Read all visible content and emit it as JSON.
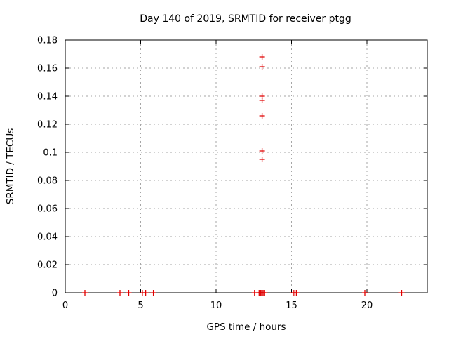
{
  "chart_data": {
    "type": "scatter",
    "title": "Day 140 of 2019, SRMTID for receiver ptgg",
    "xlabel": "GPS time / hours",
    "ylabel": "SRMTID / TECUs",
    "xlim": [
      0,
      24
    ],
    "ylim": [
      0,
      0.18
    ],
    "xticks": [
      0,
      5,
      10,
      15,
      20
    ],
    "yticks": [
      0,
      0.02,
      0.04,
      0.06,
      0.08,
      0.1,
      0.12,
      0.14,
      0.16,
      0.18
    ],
    "grid": true,
    "legend": "none",
    "marker": "plus",
    "marker_color": "#e00000",
    "grid_color": "#a6a6a6",
    "border_color": "#000000",
    "series": [
      {
        "name": "SRMTID",
        "points": [
          {
            "x": 13.05,
            "y": 0.168
          },
          {
            "x": 13.05,
            "y": 0.161
          },
          {
            "x": 13.05,
            "y": 0.14
          },
          {
            "x": 13.05,
            "y": 0.137
          },
          {
            "x": 13.05,
            "y": 0.126
          },
          {
            "x": 13.05,
            "y": 0.101
          },
          {
            "x": 13.05,
            "y": 0.095
          },
          {
            "x": 1.3,
            "y": 0
          },
          {
            "x": 3.63,
            "y": 0
          },
          {
            "x": 4.21,
            "y": 0
          },
          {
            "x": 5.11,
            "y": 0
          },
          {
            "x": 5.33,
            "y": 0
          },
          {
            "x": 5.84,
            "y": 0
          },
          {
            "x": 12.55,
            "y": 0
          },
          {
            "x": 12.85,
            "y": 0
          },
          {
            "x": 12.92,
            "y": 0
          },
          {
            "x": 12.98,
            "y": 0
          },
          {
            "x": 13.05,
            "y": 0
          },
          {
            "x": 13.12,
            "y": 0
          },
          {
            "x": 13.22,
            "y": 0
          },
          {
            "x": 15.12,
            "y": 0
          },
          {
            "x": 15.22,
            "y": 0
          },
          {
            "x": 15.32,
            "y": 0
          },
          {
            "x": 19.86,
            "y": 0
          },
          {
            "x": 22.3,
            "y": 0
          }
        ]
      }
    ]
  }
}
